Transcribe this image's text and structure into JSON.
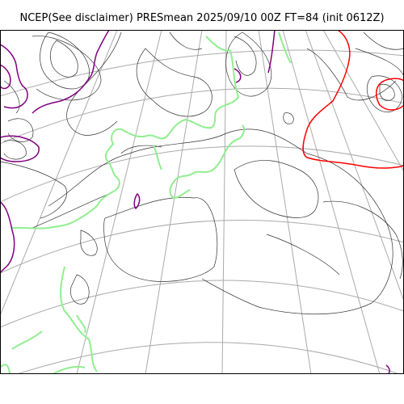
{
  "title": "NCEP(See disclaimer) PRESmean 2025/09/10 00Z FT=84 (init 0612Z)",
  "colors": {
    "graticule": "#aaaaaa",
    "isobar": "#333333",
    "coast": "#90ee90",
    "high_contour": "#ff0000",
    "low_contour": "#800080",
    "frame": "#000000"
  }
}
